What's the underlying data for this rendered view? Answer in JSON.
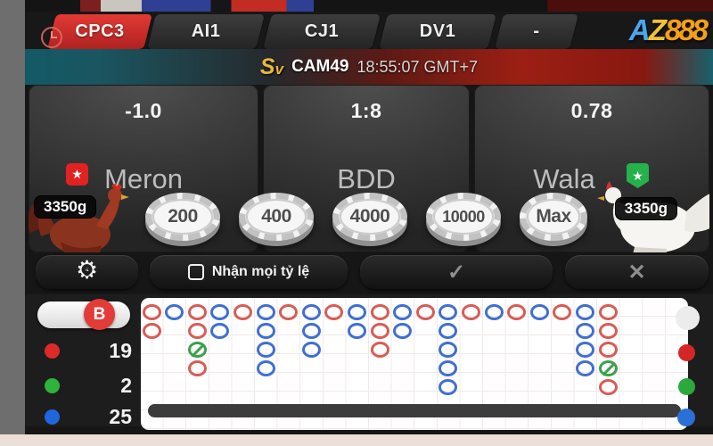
{
  "tabs": [
    {
      "label": "CPC3",
      "active": true
    },
    {
      "label": "AI1",
      "active": false
    },
    {
      "label": "CJ1",
      "active": false
    },
    {
      "label": "DV1",
      "active": false
    },
    {
      "label": "-",
      "active": false
    }
  ],
  "logo": {
    "a": "A",
    "z": "Z",
    "suffix": "888"
  },
  "banner": {
    "provider_s": "S",
    "provider_v": "v",
    "camera": "CAM49",
    "time": "18:55:07 GMT+7"
  },
  "panels": {
    "meron": {
      "odds": "-1.0",
      "name": "Meron",
      "weight": "3350g",
      "badge": "★"
    },
    "bdd": {
      "odds": "1:8",
      "name": "BDD"
    },
    "wala": {
      "odds": "0.78",
      "name": "Wala",
      "weight": "3350g",
      "badge": "★"
    }
  },
  "chips": {
    "values": [
      "200",
      "400",
      "4000",
      "10000",
      "Max"
    ]
  },
  "toolbar": {
    "bet_icon": "⚙",
    "bet_icon_dollar": "$",
    "checkbox_checked": false,
    "accept_all_label": "Nhận mọi tỷ lệ",
    "confirm_icon": "✓",
    "cancel_icon": "✕"
  },
  "roadmap": {
    "summary_button_label": "B",
    "legend": [
      {
        "name": "meron-wins",
        "color": "#dd2a2a",
        "count": "19"
      },
      {
        "name": "draws",
        "color": "#2eb33c",
        "count": "2"
      },
      {
        "name": "wala-wins",
        "color": "#2066dd",
        "count": "25"
      }
    ],
    "colors": {
      "red": "#d85c55",
      "blue": "#3f6fd1",
      "green": "#3da04b"
    },
    "columns": [
      [
        "r",
        "r"
      ],
      [
        "b"
      ],
      [
        "r",
        "r",
        "g",
        "r"
      ],
      [
        "b",
        "b"
      ],
      [
        "r"
      ],
      [
        "b",
        "b",
        "b",
        "b"
      ],
      [
        "r"
      ],
      [
        "b",
        "b",
        "b"
      ],
      [
        "r"
      ],
      [
        "b",
        "b"
      ],
      [
        "r",
        "r",
        "r"
      ],
      [
        "b",
        "b"
      ],
      [
        "r"
      ],
      [
        "b",
        "b",
        "b",
        "b",
        "b"
      ],
      [
        "r"
      ],
      [
        "b"
      ],
      [
        "r"
      ],
      [
        "b"
      ],
      [
        "r"
      ],
      [
        "b",
        "b",
        "b",
        "b"
      ],
      [
        "r",
        "r",
        "r",
        "g",
        "r"
      ]
    ]
  }
}
